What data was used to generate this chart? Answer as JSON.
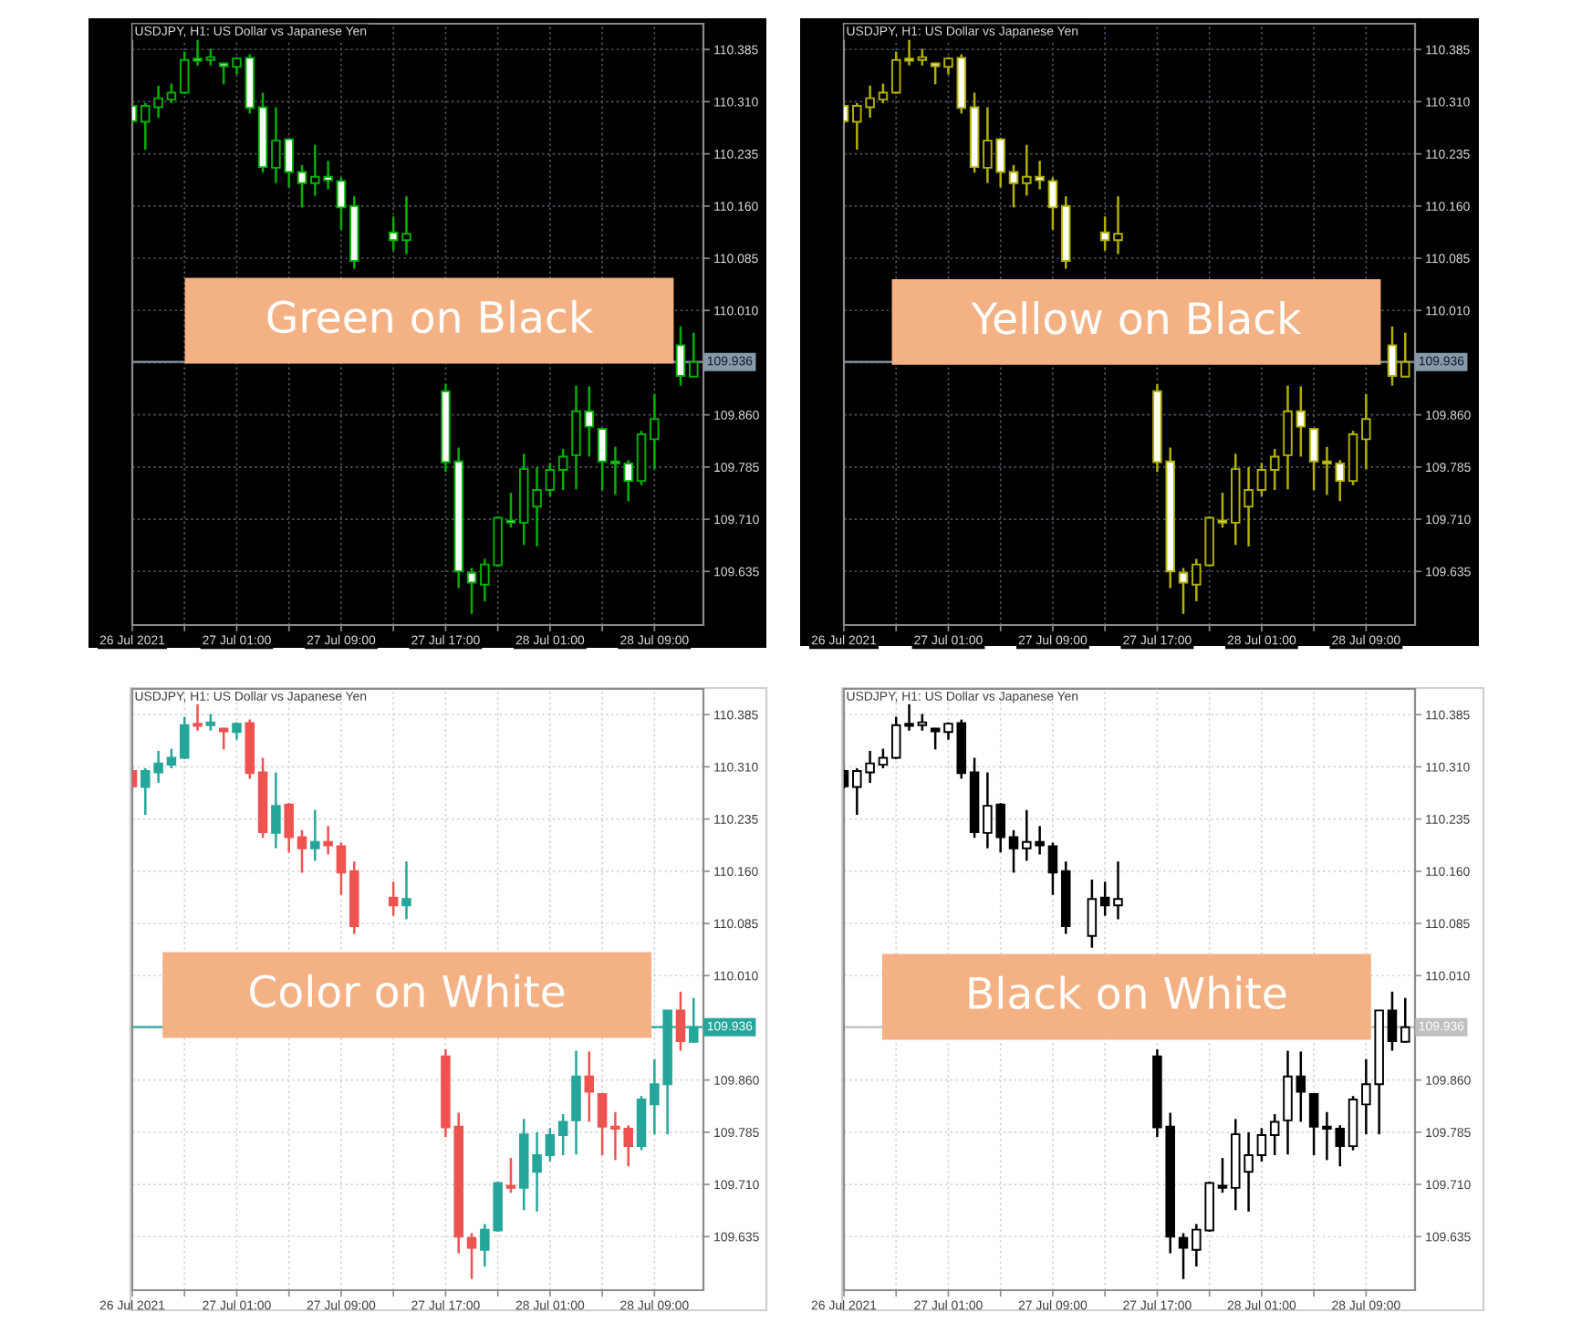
{
  "chart_data": [
    {
      "type": "candlestick",
      "title": "USDJPY, H1: US Dollar vs Japanese Yen",
      "annotations": [
        "Green on Black"
      ],
      "x": [
        "2021-07-26T17:00",
        "2021-07-26T18:00",
        "2021-07-26T19:00",
        "2021-07-26T20:00",
        "2021-07-26T21:00",
        "2021-07-26T22:00",
        "2021-07-26T23:00",
        "2021-07-27T00:00",
        "2021-07-27T01:00",
        "2021-07-27T02:00",
        "2021-07-27T03:00",
        "2021-07-27T04:00",
        "2021-07-27T05:00",
        "2021-07-27T06:00",
        "2021-07-27T07:00",
        "2021-07-27T08:00",
        "2021-07-27T09:00",
        "2021-07-27T10:00",
        "2021-07-27T13:00",
        "2021-07-27T14:00",
        "2021-07-27T17:00",
        "2021-07-27T18:00",
        "2021-07-27T19:00",
        "2021-07-27T20:00",
        "2021-07-27T21:00",
        "2021-07-27T22:00",
        "2021-07-27T23:00",
        "2021-07-28T00:00",
        "2021-07-28T01:00",
        "2021-07-28T02:00",
        "2021-07-28T03:00",
        "2021-07-28T04:00",
        "2021-07-28T05:00",
        "2021-07-28T06:00",
        "2021-07-28T07:00",
        "2021-07-28T08:00",
        "2021-07-28T09:00",
        "2021-07-28T11:00",
        "2021-07-28T12:00"
      ],
      "ohlc": [
        [
          110.304,
          110.306,
          110.279,
          110.282
        ],
        [
          110.281,
          110.308,
          110.241,
          110.304
        ],
        [
          110.302,
          110.333,
          110.287,
          110.315
        ],
        [
          110.313,
          110.336,
          110.308,
          110.323
        ],
        [
          110.323,
          110.382,
          110.321,
          110.37
        ],
        [
          110.372,
          110.4,
          110.362,
          110.369
        ],
        [
          110.37,
          110.386,
          110.362,
          110.374
        ],
        [
          110.365,
          110.366,
          110.335,
          110.361
        ],
        [
          110.36,
          110.374,
          110.349,
          110.372
        ],
        [
          110.373,
          110.378,
          110.293,
          110.301
        ],
        [
          110.302,
          110.323,
          110.208,
          110.216
        ],
        [
          110.215,
          110.302,
          110.193,
          110.254
        ],
        [
          110.256,
          110.258,
          110.187,
          110.209
        ],
        [
          110.209,
          110.219,
          110.158,
          110.193
        ],
        [
          110.193,
          110.248,
          110.175,
          110.202
        ],
        [
          110.202,
          110.225,
          110.184,
          110.197
        ],
        [
          110.196,
          110.201,
          110.126,
          110.158
        ],
        [
          110.16,
          110.174,
          110.07,
          110.081
        ],
        [
          110.122,
          110.145,
          110.096,
          110.111
        ],
        [
          110.111,
          110.174,
          110.091,
          110.12
        ],
        [
          109.894,
          109.904,
          109.778,
          109.792
        ],
        [
          109.793,
          109.813,
          109.611,
          109.635
        ],
        [
          109.633,
          109.64,
          109.574,
          109.619
        ],
        [
          109.616,
          109.653,
          109.592,
          109.645
        ],
        [
          109.644,
          109.714,
          109.642,
          109.712
        ],
        [
          109.708,
          109.748,
          109.698,
          109.705
        ],
        [
          109.705,
          109.804,
          109.673,
          109.782
        ],
        [
          109.728,
          109.785,
          109.671,
          109.752
        ],
        [
          109.752,
          109.791,
          109.743,
          109.781
        ],
        [
          109.781,
          109.811,
          109.752,
          109.8
        ],
        [
          109.802,
          109.902,
          109.753,
          109.865
        ],
        [
          109.865,
          109.901,
          109.8,
          109.843
        ],
        [
          109.84,
          109.841,
          109.752,
          109.793
        ],
        [
          109.793,
          109.814,
          109.745,
          109.79
        ],
        [
          109.79,
          109.795,
          109.736,
          109.765
        ],
        [
          109.765,
          109.837,
          109.759,
          109.832
        ],
        [
          109.825,
          109.89,
          109.782,
          109.854
        ],
        [
          109.96,
          109.987,
          109.902,
          109.916
        ],
        [
          109.915,
          109.978,
          109.914,
          109.936
        ]
      ],
      "color": "#00b000",
      "colors": [
        "#ffffff",
        "#000000",
        "#000000",
        "#000000",
        "#000000",
        "#ffffff",
        "#000000",
        "#ffffff",
        "#000000",
        "#ffffff",
        "#ffffff",
        "#000000",
        "#ffffff",
        "#ffffff",
        "#000000",
        "#ffffff",
        "#ffffff",
        "#ffffff",
        "#ffffff",
        "#000000",
        "#ffffff",
        "#ffffff",
        "#ffffff",
        "#000000",
        "#000000",
        "#ffffff",
        "#000000",
        "#000000",
        "#000000",
        "#000000",
        "#000000",
        "#ffffff",
        "#ffffff",
        "#ffffff",
        "#ffffff",
        "#000000",
        "#000000",
        "#ffffff",
        "#000000"
      ],
      "xlim": [
        "2021-07-26T17:00",
        "2021-07-28T12:45"
      ],
      "xticks": [
        {
          "value": "2021-07-26T17:00",
          "label": "26 Jul 2021"
        },
        {
          "value": "2021-07-26T21:00",
          "label": null
        },
        {
          "value": "2021-07-27T01:00",
          "label": "27 Jul 01:00"
        },
        {
          "value": "2021-07-27T05:00",
          "label": null
        },
        {
          "value": "2021-07-27T09:00",
          "label": "27 Jul 09:00"
        },
        {
          "value": "2021-07-27T13:00",
          "label": null
        },
        {
          "value": "2021-07-27T17:00",
          "label": "27 Jul 17:00"
        },
        {
          "value": "2021-07-27T21:00",
          "label": null
        },
        {
          "value": "2021-07-28T01:00",
          "label": "28 Jul 01:00"
        },
        {
          "value": "2021-07-28T05:00",
          "label": null
        },
        {
          "value": "2021-07-28T09:00",
          "label": "28 Jul 09:00"
        }
      ],
      "ylim": [
        109.558,
        110.422
      ],
      "yticks": [
        110.385,
        {
          "value": 110.31,
          "label": "110.310"
        },
        110.235,
        {
          "value": 110.16,
          "label": "110.160"
        },
        110.085,
        {
          "value": 110.01,
          "label": "110.010"
        },
        {
          "value": 109.935,
          "label": null
        },
        {
          "value": 109.86,
          "label": "109.860"
        },
        109.785,
        {
          "value": 109.71,
          "label": "109.710"
        },
        109.635
      ],
      "grid": true,
      "ref_lines": [
        {
          "axis": "y",
          "value": 109.936,
          "label": "109.936",
          "color": "#8899aa"
        }
      ]
    },
    {
      "type": "candlestick",
      "title": "USDJPY, H1: US Dollar vs Japanese Yen",
      "annotations": [
        "Yellow on Black"
      ],
      "x": [
        "2021-07-26T17:00",
        "2021-07-26T18:00",
        "2021-07-26T19:00",
        "2021-07-26T20:00",
        "2021-07-26T21:00",
        "2021-07-26T22:00",
        "2021-07-26T23:00",
        "2021-07-27T00:00",
        "2021-07-27T01:00",
        "2021-07-27T02:00",
        "2021-07-27T03:00",
        "2021-07-27T04:00",
        "2021-07-27T05:00",
        "2021-07-27T06:00",
        "2021-07-27T07:00",
        "2021-07-27T08:00",
        "2021-07-27T09:00",
        "2021-07-27T10:00",
        "2021-07-27T13:00",
        "2021-07-27T14:00",
        "2021-07-27T17:00",
        "2021-07-27T18:00",
        "2021-07-27T19:00",
        "2021-07-27T20:00",
        "2021-07-27T21:00",
        "2021-07-27T22:00",
        "2021-07-27T23:00",
        "2021-07-28T00:00",
        "2021-07-28T01:00",
        "2021-07-28T02:00",
        "2021-07-28T03:00",
        "2021-07-28T04:00",
        "2021-07-28T05:00",
        "2021-07-28T06:00",
        "2021-07-28T07:00",
        "2021-07-28T08:00",
        "2021-07-28T09:00",
        "2021-07-28T11:00",
        "2021-07-28T12:00"
      ],
      "ohlc": [
        [
          110.304,
          110.306,
          110.279,
          110.282
        ],
        [
          110.281,
          110.308,
          110.241,
          110.304
        ],
        [
          110.302,
          110.333,
          110.287,
          110.315
        ],
        [
          110.313,
          110.336,
          110.308,
          110.323
        ],
        [
          110.323,
          110.382,
          110.321,
          110.37
        ],
        [
          110.372,
          110.4,
          110.362,
          110.369
        ],
        [
          110.37,
          110.386,
          110.362,
          110.374
        ],
        [
          110.365,
          110.366,
          110.335,
          110.361
        ],
        [
          110.36,
          110.374,
          110.349,
          110.372
        ],
        [
          110.373,
          110.378,
          110.293,
          110.301
        ],
        [
          110.302,
          110.323,
          110.208,
          110.216
        ],
        [
          110.215,
          110.302,
          110.193,
          110.254
        ],
        [
          110.256,
          110.258,
          110.187,
          110.209
        ],
        [
          110.209,
          110.219,
          110.158,
          110.193
        ],
        [
          110.193,
          110.248,
          110.175,
          110.202
        ],
        [
          110.202,
          110.225,
          110.184,
          110.197
        ],
        [
          110.196,
          110.201,
          110.126,
          110.158
        ],
        [
          110.16,
          110.174,
          110.07,
          110.081
        ],
        [
          110.122,
          110.145,
          110.096,
          110.111
        ],
        [
          110.111,
          110.174,
          110.091,
          110.12
        ],
        [
          109.894,
          109.904,
          109.778,
          109.792
        ],
        [
          109.793,
          109.813,
          109.611,
          109.635
        ],
        [
          109.633,
          109.64,
          109.574,
          109.619
        ],
        [
          109.616,
          109.653,
          109.592,
          109.645
        ],
        [
          109.644,
          109.714,
          109.642,
          109.712
        ],
        [
          109.708,
          109.748,
          109.698,
          109.705
        ],
        [
          109.705,
          109.804,
          109.673,
          109.782
        ],
        [
          109.728,
          109.785,
          109.671,
          109.752
        ],
        [
          109.752,
          109.791,
          109.743,
          109.781
        ],
        [
          109.781,
          109.811,
          109.752,
          109.8
        ],
        [
          109.802,
          109.902,
          109.753,
          109.865
        ],
        [
          109.865,
          109.901,
          109.8,
          109.843
        ],
        [
          109.84,
          109.841,
          109.752,
          109.793
        ],
        [
          109.793,
          109.814,
          109.745,
          109.79
        ],
        [
          109.79,
          109.795,
          109.736,
          109.765
        ],
        [
          109.765,
          109.837,
          109.759,
          109.832
        ],
        [
          109.825,
          109.89,
          109.782,
          109.854
        ],
        [
          109.96,
          109.987,
          109.902,
          109.916
        ],
        [
          109.915,
          109.978,
          109.914,
          109.936
        ]
      ],
      "color": "#b0b000",
      "colors": [
        "#ffffff",
        "#000000",
        "#000000",
        "#000000",
        "#000000",
        "#ffffff",
        "#000000",
        "#ffffff",
        "#000000",
        "#ffffff",
        "#ffffff",
        "#000000",
        "#ffffff",
        "#ffffff",
        "#000000",
        "#ffffff",
        "#ffffff",
        "#ffffff",
        "#ffffff",
        "#000000",
        "#ffffff",
        "#ffffff",
        "#ffffff",
        "#000000",
        "#000000",
        "#ffffff",
        "#000000",
        "#000000",
        "#000000",
        "#000000",
        "#000000",
        "#ffffff",
        "#ffffff",
        "#ffffff",
        "#ffffff",
        "#000000",
        "#000000",
        "#ffffff",
        "#000000"
      ],
      "xlim": [
        "2021-07-26T17:00",
        "2021-07-28T12:45"
      ],
      "xticks": [
        {
          "value": "2021-07-26T17:00",
          "label": "26 Jul 2021"
        },
        {
          "value": "2021-07-26T21:00",
          "label": null
        },
        {
          "value": "2021-07-27T01:00",
          "label": "27 Jul 01:00"
        },
        {
          "value": "2021-07-27T05:00",
          "label": null
        },
        {
          "value": "2021-07-27T09:00",
          "label": "27 Jul 09:00"
        },
        {
          "value": "2021-07-27T13:00",
          "label": null
        },
        {
          "value": "2021-07-27T17:00",
          "label": "27 Jul 17:00"
        },
        {
          "value": "2021-07-27T21:00",
          "label": null
        },
        {
          "value": "2021-07-28T01:00",
          "label": "28 Jul 01:00"
        },
        {
          "value": "2021-07-28T05:00",
          "label": null
        },
        {
          "value": "2021-07-28T09:00",
          "label": "28 Jul 09:00"
        }
      ],
      "ylim": [
        109.558,
        110.422
      ],
      "yticks": [
        110.385,
        {
          "value": 110.31,
          "label": "110.310"
        },
        110.235,
        {
          "value": 110.16,
          "label": "110.160"
        },
        110.085,
        {
          "value": 110.01,
          "label": "110.010"
        },
        {
          "value": 109.935,
          "label": null
        },
        {
          "value": 109.86,
          "label": "109.860"
        },
        109.785,
        {
          "value": 109.71,
          "label": "109.710"
        },
        109.635
      ],
      "grid": true,
      "ref_lines": [
        {
          "axis": "y",
          "value": 109.936,
          "label": "109.936",
          "color": "#8899aa"
        }
      ]
    },
    {
      "type": "candlestick",
      "title": "USDJPY, H1: US Dollar vs Japanese Yen",
      "annotations": [
        "Color on White"
      ],
      "x": [
        "2021-07-26T17:00",
        "2021-07-26T18:00",
        "2021-07-26T19:00",
        "2021-07-26T20:00",
        "2021-07-26T21:00",
        "2021-07-26T22:00",
        "2021-07-26T23:00",
        "2021-07-27T00:00",
        "2021-07-27T01:00",
        "2021-07-27T02:00",
        "2021-07-27T03:00",
        "2021-07-27T04:00",
        "2021-07-27T05:00",
        "2021-07-27T06:00",
        "2021-07-27T07:00",
        "2021-07-27T08:00",
        "2021-07-27T09:00",
        "2021-07-27T10:00",
        "2021-07-27T13:00",
        "2021-07-27T14:00",
        "2021-07-27T17:00",
        "2021-07-27T18:00",
        "2021-07-27T19:00",
        "2021-07-27T20:00",
        "2021-07-27T21:00",
        "2021-07-27T22:00",
        "2021-07-27T23:00",
        "2021-07-28T00:00",
        "2021-07-28T01:00",
        "2021-07-28T02:00",
        "2021-07-28T03:00",
        "2021-07-28T04:00",
        "2021-07-28T05:00",
        "2021-07-28T06:00",
        "2021-07-28T07:00",
        "2021-07-28T08:00",
        "2021-07-28T09:00",
        "2021-07-28T10:00",
        "2021-07-28T11:00",
        "2021-07-28T12:00"
      ],
      "ohlc": [
        [
          110.304,
          110.306,
          110.279,
          110.282
        ],
        [
          110.281,
          110.308,
          110.241,
          110.304
        ],
        [
          110.302,
          110.333,
          110.287,
          110.315
        ],
        [
          110.313,
          110.336,
          110.308,
          110.323
        ],
        [
          110.323,
          110.382,
          110.321,
          110.37
        ],
        [
          110.372,
          110.4,
          110.362,
          110.369
        ],
        [
          110.37,
          110.386,
          110.362,
          110.374
        ],
        [
          110.365,
          110.366,
          110.335,
          110.361
        ],
        [
          110.36,
          110.374,
          110.349,
          110.372
        ],
        [
          110.373,
          110.378,
          110.293,
          110.301
        ],
        [
          110.302,
          110.323,
          110.208,
          110.216
        ],
        [
          110.215,
          110.302,
          110.193,
          110.254
        ],
        [
          110.256,
          110.258,
          110.187,
          110.209
        ],
        [
          110.209,
          110.219,
          110.158,
          110.193
        ],
        [
          110.193,
          110.248,
          110.175,
          110.202
        ],
        [
          110.202,
          110.225,
          110.184,
          110.197
        ],
        [
          110.196,
          110.201,
          110.126,
          110.158
        ],
        [
          110.16,
          110.174,
          110.07,
          110.081
        ],
        [
          110.122,
          110.145,
          110.096,
          110.111
        ],
        [
          110.111,
          110.174,
          110.091,
          110.12
        ],
        [
          109.894,
          109.904,
          109.778,
          109.792
        ],
        [
          109.793,
          109.813,
          109.611,
          109.635
        ],
        [
          109.633,
          109.64,
          109.574,
          109.619
        ],
        [
          109.616,
          109.653,
          109.592,
          109.645
        ],
        [
          109.644,
          109.714,
          109.642,
          109.712
        ],
        [
          109.708,
          109.748,
          109.698,
          109.705
        ],
        [
          109.705,
          109.804,
          109.673,
          109.782
        ],
        [
          109.728,
          109.785,
          109.671,
          109.752
        ],
        [
          109.752,
          109.791,
          109.743,
          109.781
        ],
        [
          109.781,
          109.811,
          109.752,
          109.8
        ],
        [
          109.802,
          109.902,
          109.753,
          109.865
        ],
        [
          109.865,
          109.901,
          109.8,
          109.843
        ],
        [
          109.84,
          109.841,
          109.752,
          109.793
        ],
        [
          109.793,
          109.814,
          109.745,
          109.79
        ],
        [
          109.79,
          109.795,
          109.736,
          109.765
        ],
        [
          109.765,
          109.837,
          109.759,
          109.832
        ],
        [
          109.825,
          109.89,
          109.782,
          109.854
        ],
        [
          109.854,
          109.96,
          109.782,
          109.96
        ],
        [
          109.96,
          109.987,
          109.902,
          109.916
        ],
        [
          109.915,
          109.978,
          109.914,
          109.936
        ]
      ],
      "colors": [
        "#ef5350",
        "#26a69a",
        "#26a69a",
        "#26a69a",
        "#26a69a",
        "#ef5350",
        "#26a69a",
        "#ef5350",
        "#26a69a",
        "#ef5350",
        "#ef5350",
        "#26a69a",
        "#ef5350",
        "#ef5350",
        "#26a69a",
        "#ef5350",
        "#ef5350",
        "#ef5350",
        "#ef5350",
        "#26a69a",
        "#ef5350",
        "#ef5350",
        "#ef5350",
        "#26a69a",
        "#26a69a",
        "#ef5350",
        "#26a69a",
        "#26a69a",
        "#26a69a",
        "#26a69a",
        "#26a69a",
        "#ef5350",
        "#ef5350",
        "#ef5350",
        "#ef5350",
        "#26a69a",
        "#26a69a",
        "#26a69a",
        "#ef5350",
        "#26a69a"
      ],
      "xlim": [
        "2021-07-26T17:00",
        "2021-07-28T12:45"
      ],
      "xticks": [
        {
          "value": "2021-07-26T17:00",
          "label": "26 Jul 2021"
        },
        {
          "value": "2021-07-26T21:00",
          "label": null
        },
        {
          "value": "2021-07-27T01:00",
          "label": "27 Jul 01:00"
        },
        {
          "value": "2021-07-27T05:00",
          "label": null
        },
        {
          "value": "2021-07-27T09:00",
          "label": "27 Jul 09:00"
        },
        {
          "value": "2021-07-27T13:00",
          "label": null
        },
        {
          "value": "2021-07-27T17:00",
          "label": "27 Jul 17:00"
        },
        {
          "value": "2021-07-27T21:00",
          "label": null
        },
        {
          "value": "2021-07-28T01:00",
          "label": "28 Jul 01:00"
        },
        {
          "value": "2021-07-28T05:00",
          "label": null
        },
        {
          "value": "2021-07-28T09:00",
          "label": "28 Jul 09:00"
        }
      ],
      "ylim": [
        109.558,
        110.422
      ],
      "yticks": [
        110.385,
        {
          "value": 110.31,
          "label": "110.310"
        },
        110.235,
        {
          "value": 110.16,
          "label": "110.160"
        },
        110.085,
        {
          "value": 110.01,
          "label": "110.010"
        },
        {
          "value": 109.935,
          "label": null
        },
        {
          "value": 109.86,
          "label": "109.860"
        },
        109.785,
        {
          "value": 109.71,
          "label": "109.710"
        },
        109.635
      ],
      "grid": true,
      "ref_lines": [
        {
          "axis": "y",
          "value": 109.936,
          "label": "109.936",
          "color": "#26a69a"
        }
      ]
    },
    {
      "type": "candlestick",
      "title": "USDJPY, H1: US Dollar vs Japanese Yen",
      "annotations": [
        "Black on White"
      ],
      "x": [
        "2021-07-26T17:00",
        "2021-07-26T18:00",
        "2021-07-26T19:00",
        "2021-07-26T20:00",
        "2021-07-26T21:00",
        "2021-07-26T22:00",
        "2021-07-26T23:00",
        "2021-07-27T00:00",
        "2021-07-27T01:00",
        "2021-07-27T02:00",
        "2021-07-27T03:00",
        "2021-07-27T04:00",
        "2021-07-27T05:00",
        "2021-07-27T06:00",
        "2021-07-27T07:00",
        "2021-07-27T08:00",
        "2021-07-27T09:00",
        "2021-07-27T10:00",
        "2021-07-27T12:00",
        "2021-07-27T13:00",
        "2021-07-27T14:00",
        "2021-07-27T17:00",
        "2021-07-27T18:00",
        "2021-07-27T19:00",
        "2021-07-27T20:00",
        "2021-07-27T21:00",
        "2021-07-27T22:00",
        "2021-07-27T23:00",
        "2021-07-28T00:00",
        "2021-07-28T01:00",
        "2021-07-28T02:00",
        "2021-07-28T03:00",
        "2021-07-28T04:00",
        "2021-07-28T05:00",
        "2021-07-28T06:00",
        "2021-07-28T07:00",
        "2021-07-28T08:00",
        "2021-07-28T09:00",
        "2021-07-28T10:00",
        "2021-07-28T11:00",
        "2021-07-28T12:00"
      ],
      "ohlc": [
        [
          110.304,
          110.306,
          110.279,
          110.282
        ],
        [
          110.281,
          110.308,
          110.241,
          110.304
        ],
        [
          110.302,
          110.333,
          110.287,
          110.315
        ],
        [
          110.313,
          110.336,
          110.308,
          110.323
        ],
        [
          110.323,
          110.382,
          110.321,
          110.37
        ],
        [
          110.372,
          110.4,
          110.362,
          110.369
        ],
        [
          110.37,
          110.386,
          110.362,
          110.374
        ],
        [
          110.365,
          110.366,
          110.335,
          110.361
        ],
        [
          110.36,
          110.374,
          110.349,
          110.372
        ],
        [
          110.373,
          110.378,
          110.293,
          110.301
        ],
        [
          110.302,
          110.323,
          110.208,
          110.216
        ],
        [
          110.215,
          110.302,
          110.193,
          110.254
        ],
        [
          110.256,
          110.258,
          110.187,
          110.209
        ],
        [
          110.209,
          110.219,
          110.158,
          110.193
        ],
        [
          110.193,
          110.248,
          110.175,
          110.202
        ],
        [
          110.202,
          110.225,
          110.184,
          110.197
        ],
        [
          110.196,
          110.201,
          110.126,
          110.158
        ],
        [
          110.16,
          110.174,
          110.07,
          110.081
        ],
        [
          110.067,
          110.148,
          110.05,
          110.12
        ],
        [
          110.122,
          110.145,
          110.096,
          110.111
        ],
        [
          110.111,
          110.174,
          110.091,
          110.12
        ],
        [
          109.894,
          109.904,
          109.778,
          109.792
        ],
        [
          109.793,
          109.813,
          109.611,
          109.635
        ],
        [
          109.633,
          109.64,
          109.574,
          109.619
        ],
        [
          109.616,
          109.653,
          109.592,
          109.645
        ],
        [
          109.644,
          109.714,
          109.642,
          109.712
        ],
        [
          109.708,
          109.748,
          109.698,
          109.705
        ],
        [
          109.705,
          109.804,
          109.673,
          109.782
        ],
        [
          109.728,
          109.785,
          109.671,
          109.752
        ],
        [
          109.752,
          109.791,
          109.743,
          109.781
        ],
        [
          109.781,
          109.811,
          109.752,
          109.8
        ],
        [
          109.802,
          109.902,
          109.753,
          109.865
        ],
        [
          109.865,
          109.901,
          109.8,
          109.843
        ],
        [
          109.84,
          109.841,
          109.752,
          109.793
        ],
        [
          109.793,
          109.814,
          109.745,
          109.79
        ],
        [
          109.79,
          109.795,
          109.736,
          109.765
        ],
        [
          109.765,
          109.837,
          109.759,
          109.832
        ],
        [
          109.825,
          109.89,
          109.782,
          109.854
        ],
        [
          109.854,
          109.96,
          109.782,
          109.96
        ],
        [
          109.96,
          109.987,
          109.902,
          109.916
        ],
        [
          109.915,
          109.978,
          109.914,
          109.936
        ]
      ],
      "color": "#000000",
      "colors": [
        "#000000",
        "#ffffff",
        "#ffffff",
        "#ffffff",
        "#ffffff",
        "#000000",
        "#ffffff",
        "#000000",
        "#ffffff",
        "#000000",
        "#000000",
        "#ffffff",
        "#000000",
        "#000000",
        "#ffffff",
        "#000000",
        "#000000",
        "#000000",
        "#ffffff",
        "#000000",
        "#ffffff",
        "#000000",
        "#000000",
        "#000000",
        "#ffffff",
        "#ffffff",
        "#000000",
        "#ffffff",
        "#ffffff",
        "#ffffff",
        "#ffffff",
        "#ffffff",
        "#000000",
        "#000000",
        "#000000",
        "#000000",
        "#ffffff",
        "#ffffff",
        "#ffffff",
        "#000000",
        "#ffffff"
      ],
      "xlim": [
        "2021-07-26T17:00",
        "2021-07-28T12:45"
      ],
      "xticks": [
        {
          "value": "2021-07-26T17:00",
          "label": "26 Jul 2021"
        },
        {
          "value": "2021-07-26T21:00",
          "label": null
        },
        {
          "value": "2021-07-27T01:00",
          "label": "27 Jul 01:00"
        },
        {
          "value": "2021-07-27T05:00",
          "label": null
        },
        {
          "value": "2021-07-27T09:00",
          "label": "27 Jul 09:00"
        },
        {
          "value": "2021-07-27T13:00",
          "label": null
        },
        {
          "value": "2021-07-27T17:00",
          "label": "27 Jul 17:00"
        },
        {
          "value": "2021-07-27T21:00",
          "label": null
        },
        {
          "value": "2021-07-28T01:00",
          "label": "28 Jul 01:00"
        },
        {
          "value": "2021-07-28T05:00",
          "label": null
        },
        {
          "value": "2021-07-28T09:00",
          "label": "28 Jul 09:00"
        }
      ],
      "ylim": [
        109.558,
        110.422
      ],
      "yticks": [
        110.385,
        {
          "value": 110.31,
          "label": "110.310"
        },
        110.235,
        {
          "value": 110.16,
          "label": "110.160"
        },
        110.085,
        {
          "value": 110.01,
          "label": "110.010"
        },
        {
          "value": 109.935,
          "label": null
        },
        {
          "value": 109.86,
          "label": "109.860"
        },
        109.785,
        {
          "value": 109.71,
          "label": "109.710"
        },
        109.635
      ],
      "grid": true,
      "ref_lines": [
        {
          "axis": "y",
          "value": 109.936,
          "label": "109.936",
          "color": "#c0c0c0"
        }
      ]
    }
  ]
}
